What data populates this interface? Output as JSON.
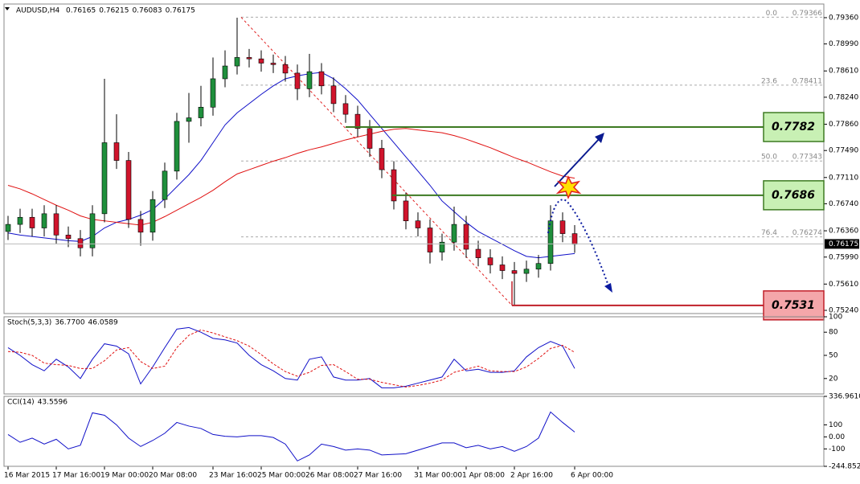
{
  "chart_data": [
    {
      "type": "candlestick",
      "symbol": "AUDUSD,H4",
      "header_values": [
        0.76165,
        0.76215,
        0.76083,
        0.76175
      ],
      "categories": [
        "16 Mar 2015",
        null,
        null,
        null,
        "17 Mar 16:00",
        null,
        null,
        null,
        "19 Mar 00:00",
        null,
        null,
        null,
        "20 Mar 08:00",
        null,
        null,
        null,
        null,
        "23 Mar 16:00",
        null,
        null,
        null,
        "25 Mar 00:00",
        null,
        null,
        null,
        "26 Mar 08:00",
        null,
        null,
        null,
        "27 Mar 16:00",
        null,
        null,
        null,
        null,
        "31 Mar 00:00",
        null,
        null,
        null,
        "1 Apr 08:00",
        null,
        null,
        null,
        "2 Apr 16:00",
        null,
        null,
        null,
        null,
        "6 Apr 00:00"
      ],
      "open": [
        0.7635,
        0.7645,
        0.7655,
        0.764,
        0.766,
        0.763,
        0.7625,
        0.7612,
        0.766,
        0.776,
        0.7735,
        0.7652,
        0.7634,
        0.768,
        0.772,
        0.779,
        0.7795,
        0.781,
        0.785,
        0.7868,
        0.788,
        0.7878,
        0.7872,
        0.787,
        0.7858,
        0.7836,
        0.786,
        0.784,
        0.7815,
        0.78,
        0.778,
        0.7752,
        0.7722,
        0.7678,
        0.765,
        0.764,
        0.7606,
        0.762,
        0.7645,
        0.761,
        0.7598,
        0.7588,
        0.758,
        0.7576,
        0.7582,
        0.759,
        0.765,
        0.7632
      ],
      "high": [
        0.7657,
        0.7667,
        0.7667,
        0.7672,
        0.7672,
        0.7642,
        0.7637,
        0.7672,
        0.785,
        0.78,
        0.7747,
        0.7664,
        0.7692,
        0.7732,
        0.7802,
        0.783,
        0.784,
        0.788,
        0.789,
        0.7936,
        0.7892,
        0.789,
        0.7884,
        0.7882,
        0.787,
        0.7885,
        0.7872,
        0.7852,
        0.7827,
        0.7812,
        0.7792,
        0.7764,
        0.7734,
        0.769,
        0.7662,
        0.7652,
        0.7632,
        0.767,
        0.7657,
        0.7622,
        0.761,
        0.76,
        0.7592,
        0.7594,
        0.7602,
        0.7672,
        0.7662,
        0.7644
      ],
      "low": [
        0.7623,
        0.7633,
        0.7628,
        0.7628,
        0.7618,
        0.7613,
        0.76,
        0.76,
        0.7648,
        0.7723,
        0.764,
        0.7615,
        0.7622,
        0.7668,
        0.7708,
        0.776,
        0.7783,
        0.7798,
        0.7838,
        0.7856,
        0.7866,
        0.786,
        0.7858,
        0.7846,
        0.782,
        0.7824,
        0.7828,
        0.7803,
        0.7788,
        0.7768,
        0.774,
        0.771,
        0.7666,
        0.7638,
        0.7628,
        0.759,
        0.7594,
        0.7608,
        0.7598,
        0.7586,
        0.7576,
        0.7568,
        0.7531,
        0.7564,
        0.757,
        0.758,
        0.762,
        0.7605
      ],
      "close": [
        0.7645,
        0.7655,
        0.764,
        0.766,
        0.763,
        0.7625,
        0.7612,
        0.766,
        0.776,
        0.7735,
        0.7652,
        0.7634,
        0.768,
        0.772,
        0.779,
        0.7795,
        0.781,
        0.785,
        0.7868,
        0.788,
        0.7878,
        0.7872,
        0.787,
        0.7858,
        0.7836,
        0.786,
        0.784,
        0.7815,
        0.78,
        0.778,
        0.7752,
        0.7722,
        0.7678,
        0.765,
        0.764,
        0.7606,
        0.762,
        0.7645,
        0.761,
        0.7598,
        0.7588,
        0.758,
        0.7576,
        0.7582,
        0.759,
        0.765,
        0.7632,
        0.7617
      ],
      "up_color": "#1f8f3c",
      "down_color": "#d0142c",
      "series": [
        {
          "color": "#1010c8",
          "values": [
            0.7633,
            0.763,
            0.7628,
            0.7626,
            0.7624,
            0.7622,
            0.7621,
            0.7628,
            0.764,
            0.7648,
            0.7652,
            0.7658,
            0.7666,
            0.7681,
            0.7698,
            0.7715,
            0.7735,
            0.776,
            0.7785,
            0.7802,
            0.7815,
            0.7828,
            0.784,
            0.785,
            0.7854,
            0.7857,
            0.7859,
            0.785,
            0.7836,
            0.782,
            0.78,
            0.778,
            0.776,
            0.774,
            0.772,
            0.77,
            0.7678,
            0.7663,
            0.7648,
            0.7635,
            0.7626,
            0.7617,
            0.7608,
            0.76,
            0.7598,
            0.76,
            0.7602,
            0.7604
          ]
        },
        {
          "color": "#e01010",
          "values": [
            0.77,
            0.7695,
            0.7688,
            0.768,
            0.7672,
            0.7665,
            0.7657,
            0.7652,
            0.765,
            0.7648,
            0.7646,
            0.7644,
            0.7648,
            0.7656,
            0.7665,
            0.7674,
            0.7683,
            0.7693,
            0.7705,
            0.7716,
            0.7722,
            0.7728,
            0.7734,
            0.7739,
            0.7745,
            0.775,
            0.7754,
            0.7759,
            0.7764,
            0.7768,
            0.7772,
            0.7776,
            0.7779,
            0.778,
            0.7778,
            0.7776,
            0.7774,
            0.777,
            0.7765,
            0.7759,
            0.7753,
            0.7746,
            0.7739,
            0.7733,
            0.7726,
            0.7719,
            0.7713,
            0.771
          ]
        }
      ],
      "ylim": [
        0.75195,
        0.79552
      ],
      "yticks": [
        {
          "value": 0.7936,
          "label": "0.79360"
        },
        {
          "value": 0.7899,
          "label": "0.78990"
        },
        {
          "value": 0.7861,
          "label": "0.78610"
        },
        {
          "value": 0.7824,
          "label": "0.78240"
        },
        {
          "value": 0.7786,
          "label": "0.77860"
        },
        {
          "value": 0.7749,
          "label": "0.77490"
        },
        {
          "value": 0.7711,
          "label": "0.77110"
        },
        {
          "value": 0.7674,
          "label": "0.76740"
        },
        {
          "value": 0.7636,
          "label": "0.76360"
        },
        {
          "value": 0.7599,
          "label": "0.75990"
        },
        {
          "value": 0.7561,
          "label": "0.75610"
        },
        {
          "value": 0.7524,
          "label": "0.75240"
        }
      ],
      "last_price": 0.76175,
      "fibonacci": [
        {
          "level": {
            "value": 0,
            "label": "0.0"
          },
          "price": 0.79366
        },
        {
          "level": 23.6,
          "price": 0.78411
        },
        {
          "level": {
            "value": 50,
            "label": "50.0"
          },
          "price": 0.77343
        },
        {
          "level": 76.4,
          "price": 0.76274
        }
      ],
      "levels": [
        {
          "value": 0.7782,
          "color": "#3d7a22",
          "fill": "#c8f0b4"
        },
        {
          "value": 0.7686,
          "color": "#3d7a22",
          "fill": "#c8f0b4"
        },
        {
          "value": 0.7531,
          "color": "#c0202a",
          "fill": "#f4a6aa"
        }
      ]
    },
    {
      "type": "line",
      "title": "Stoch(5,3,3)",
      "header_values": [
        {
          "value": 36.77,
          "label": "36.7700"
        },
        46.0589
      ],
      "series": [
        {
          "color": "#1010c8",
          "values": [
            60,
            50,
            38,
            30,
            45,
            35,
            20,
            45,
            65,
            62,
            52,
            13,
            35,
            60,
            84,
            86,
            80,
            72,
            70,
            66,
            50,
            38,
            30,
            20,
            18,
            45,
            48,
            22,
            18,
            18,
            20,
            8,
            8,
            10,
            14,
            18,
            22,
            45,
            30,
            32,
            28,
            28,
            30,
            48,
            60,
            68,
            62,
            33
          ]
        },
        {
          "color": "#e01010",
          "dashed": true,
          "values": [
            55,
            54,
            50,
            40,
            38,
            37,
            33,
            33,
            43,
            57,
            60,
            42,
            33,
            36,
            60,
            76,
            83,
            79,
            74,
            69,
            62,
            51,
            39,
            29,
            23,
            28,
            37,
            38,
            29,
            19,
            19,
            15,
            12,
            9,
            11,
            14,
            18,
            28,
            32,
            36,
            30,
            29,
            29,
            35,
            46,
            59,
            63,
            54
          ]
        }
      ],
      "ylim": [
        0,
        100
      ],
      "yticks": [
        100,
        80,
        50,
        20
      ]
    },
    {
      "type": "line",
      "title": "CCI(14)",
      "header_values": [
        43.5596
      ],
      "series": [
        {
          "color": "#1010c8",
          "values": [
            20,
            -45,
            -10,
            -60,
            -20,
            -100,
            -70,
            200,
            180,
            100,
            -10,
            -80,
            -30,
            30,
            120,
            90,
            70,
            20,
            5,
            0,
            10,
            10,
            -5,
            -60,
            -200,
            -150,
            -60,
            -80,
            -110,
            -100,
            -110,
            -150,
            -145,
            -140,
            -110,
            -80,
            -50,
            -50,
            -90,
            -70,
            -100,
            -80,
            -120,
            -80,
            -10,
            207,
            120,
            40
          ]
        }
      ],
      "ylim": [
        -244.8522,
        336.961
      ],
      "yticks": [
        {
          "value": 336.961,
          "label": "336.9610"
        },
        100,
        {
          "value": 0,
          "label": "0.00"
        },
        -100,
        -244.8522
      ]
    }
  ]
}
